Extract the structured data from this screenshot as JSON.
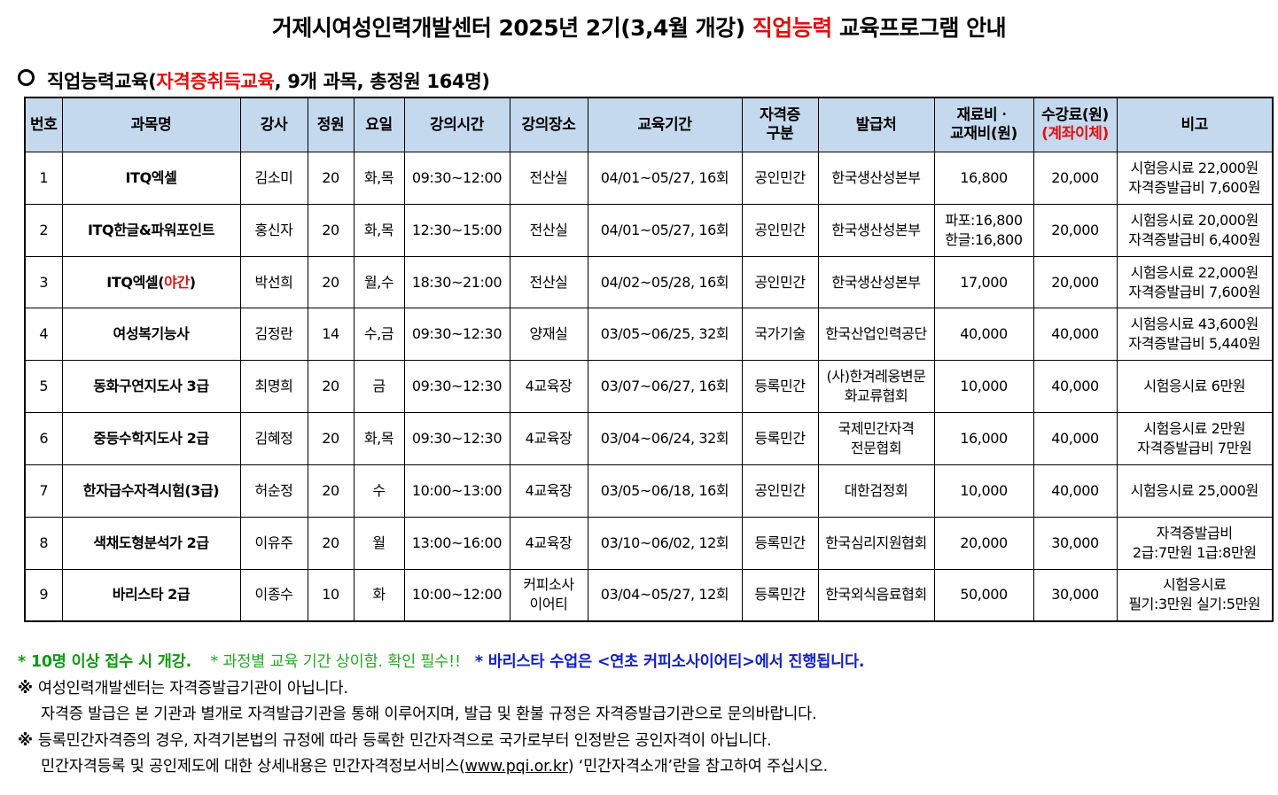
{
  "title": {
    "part1": "거제시여성인력개발센터 2025년 2기(3,4월 개강) ",
    "part2": "직업능력",
    "part3": " 교육프로그램 안내"
  },
  "section": {
    "part1": "직업능력교육(",
    "part2": "자격증취득교육",
    "part3": ", 9개 과목, 총정원 164명)"
  },
  "table": {
    "headers": {
      "no": "번호",
      "course": "과목명",
      "teacher": "강사",
      "capacity": "정원",
      "days": "요일",
      "time": "강의시간",
      "place": "강의장소",
      "period": "교육기간",
      "cert_type_1": "자격증",
      "cert_type_2": "구분",
      "issuer": "발급처",
      "material_1": "재료비ㆍ",
      "material_2": "교재비(원)",
      "fee_1": "수강료(원)",
      "fee_2": "(계좌이체)",
      "remarks": "비고"
    },
    "rows": [
      {
        "no": "1",
        "course": "ITQ엑셀",
        "course_red": "",
        "course_end": "",
        "teacher": "김소미",
        "capacity": "20",
        "days": "화,목",
        "time": "09:30~12:00",
        "place_1": "전산실",
        "place_2": "",
        "period": "04/01~05/27, 16회",
        "cert_type": "공인민간",
        "issuer_1": "한국생산성본부",
        "issuer_2": "",
        "material_1": "16,800",
        "material_2": "",
        "fee": "20,000",
        "remarks_1": "시험응시료 22,000원",
        "remarks_2": "자격증발급비 7,600원"
      },
      {
        "no": "2",
        "course": "ITQ한글&파워포인트",
        "course_red": "",
        "course_end": "",
        "teacher": "홍신자",
        "capacity": "20",
        "days": "화,목",
        "time": "12:30~15:00",
        "place_1": "전산실",
        "place_2": "",
        "period": "04/01~05/27, 16회",
        "cert_type": "공인민간",
        "issuer_1": "한국생산성본부",
        "issuer_2": "",
        "material_1": "파포:16,800",
        "material_2": "한글:16,800",
        "fee": "20,000",
        "remarks_1": "시험응시료 20,000원",
        "remarks_2": "자격증발급비 6,400원"
      },
      {
        "no": "3",
        "course": "ITQ엑셀(",
        "course_red": "야간",
        "course_end": ")",
        "teacher": "박선희",
        "capacity": "20",
        "days": "월,수",
        "time": "18:30~21:00",
        "place_1": "전산실",
        "place_2": "",
        "period": "04/02~05/28, 16회",
        "cert_type": "공인민간",
        "issuer_1": "한국생산성본부",
        "issuer_2": "",
        "material_1": "17,000",
        "material_2": "",
        "fee": "20,000",
        "remarks_1": "시험응시료 22,000원",
        "remarks_2": "자격증발급비 7,600원"
      },
      {
        "no": "4",
        "course": "여성복기능사",
        "course_red": "",
        "course_end": "",
        "teacher": "김정란",
        "capacity": "14",
        "days": "수,금",
        "time": "09:30~12:30",
        "place_1": "양재실",
        "place_2": "",
        "period": "03/05~06/25, 32회",
        "cert_type": "국가기술",
        "issuer_1": "한국산업인력공단",
        "issuer_2": "",
        "material_1": "40,000",
        "material_2": "",
        "fee": "40,000",
        "remarks_1": "시험응시료 43,600원",
        "remarks_2": "자격증발급비 5,440원"
      },
      {
        "no": "5",
        "course": "동화구연지도사 3급",
        "course_red": "",
        "course_end": "",
        "teacher": "최명희",
        "capacity": "20",
        "days": "금",
        "time": "09:30~12:30",
        "place_1": "4교육장",
        "place_2": "",
        "period": "03/07~06/27, 16회",
        "cert_type": "등록민간",
        "issuer_1": "(사)한겨레웅변문",
        "issuer_2": "화교류협회",
        "material_1": "10,000",
        "material_2": "",
        "fee": "40,000",
        "remarks_1": "시험응시료 6만원",
        "remarks_2": ""
      },
      {
        "no": "6",
        "course": "중등수학지도사 2급",
        "course_red": "",
        "course_end": "",
        "teacher": "김혜정",
        "capacity": "20",
        "days": "화,목",
        "time": "09:30~12:30",
        "place_1": "4교육장",
        "place_2": "",
        "period": "03/04~06/24, 32회",
        "cert_type": "등록민간",
        "issuer_1": "국제민간자격",
        "issuer_2": "전문협회",
        "material_1": "16,000",
        "material_2": "",
        "fee": "40,000",
        "remarks_1": "시험응시료 2만원",
        "remarks_2": "자격증발급비 7만원"
      },
      {
        "no": "7",
        "course": "한자급수자격시험(3급)",
        "course_red": "",
        "course_end": "",
        "teacher": "허순정",
        "capacity": "20",
        "days": "수",
        "time": "10:00~13:00",
        "place_1": "4교육장",
        "place_2": "",
        "period": "03/05~06/18, 16회",
        "cert_type": "공인민간",
        "issuer_1": "대한검정회",
        "issuer_2": "",
        "material_1": "10,000",
        "material_2": "",
        "fee": "40,000",
        "remarks_1": "시험응시료 25,000원",
        "remarks_2": ""
      },
      {
        "no": "8",
        "course": "색채도형분석가 2급",
        "course_red": "",
        "course_end": "",
        "teacher": "이유주",
        "capacity": "20",
        "days": "월",
        "time": "13:00~16:00",
        "place_1": "4교육장",
        "place_2": "",
        "period": "03/10~06/02, 12회",
        "cert_type": "등록민간",
        "issuer_1": "한국심리지원협회",
        "issuer_2": "",
        "material_1": "20,000",
        "material_2": "",
        "fee": "30,000",
        "remarks_1": "자격증발급비",
        "remarks_2": "2급:7만원 1급:8만원"
      },
      {
        "no": "9",
        "course": "바리스타 2급",
        "course_red": "",
        "course_end": "",
        "teacher": "이종수",
        "capacity": "10",
        "days": "화",
        "time": "10:00~12:00",
        "place_1": "커피소사",
        "place_2": "이어티",
        "period": "03/04~05/27, 12회",
        "cert_type": "등록민간",
        "issuer_1": "한국외식음료협회",
        "issuer_2": "",
        "material_1": "50,000",
        "material_2": "",
        "fee": "30,000",
        "remarks_1": "시험응시료",
        "remarks_2": "필기:3만원 실기:5만원"
      }
    ]
  },
  "notes": {
    "n1": "* 10명 이상 접수 시 개강.",
    "n2": "* 과정별 교육 기간 상이함. 확인 필수!!",
    "n3": "* 바리스타 수업은 <연초 커피소사이어티>에서 진행됩니다.",
    "mark": "※",
    "line2": "여성인력개발센터는 자격증발급기관이 아닙니다.",
    "line3": "자격증 발급은 본 기관과 별개로 자격발급기관을 통해 이루어지며, 발급 및 환불 규정은 자격증발급기관으로 문의바랍니다.",
    "line4": "등록민간자격증의 경우, 자격기본법의 규정에 따라 등록한 민간자격으로 국가로부터 인정받은 공인자격이 아닙니다.",
    "line5_a": "민간자격등록 및 공인제도에 대한 상세내용은 민간자격정보서비스(",
    "line5_url": "www.pqi.or.kr",
    "line5_b": ") ‘민간자격소개’란을 참고하여 주십시오."
  }
}
